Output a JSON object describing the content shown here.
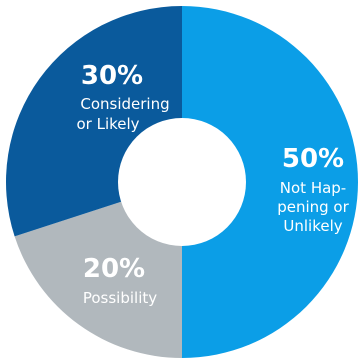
{
  "chart_data": {
    "type": "pie",
    "donut": true,
    "slices": [
      {
        "percent_label": "50%",
        "value": 50,
        "label_lines": [
          "Not Hap-",
          "pening or",
          "Unlikely"
        ],
        "color": "#0b9ee7"
      },
      {
        "percent_label": "20%",
        "value": 20,
        "label_lines": [
          "Possibility"
        ],
        "color": "#b1b8bd"
      },
      {
        "percent_label": "30%",
        "value": 30,
        "label_lines": [
          "Considering",
          "or Likely"
        ],
        "color": "#0a5a9c"
      }
    ]
  }
}
